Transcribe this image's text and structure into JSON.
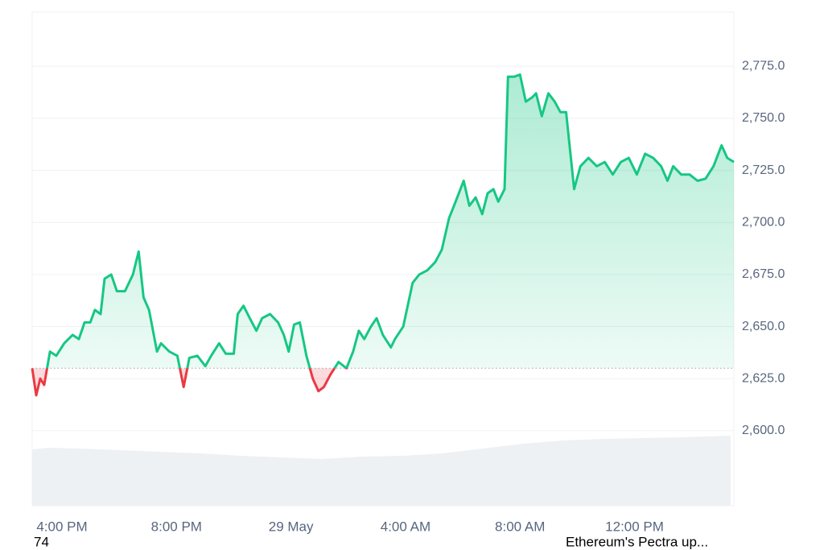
{
  "chart_data": {
    "type": "line",
    "x": [
      14.96,
      15.1,
      15.24,
      15.38,
      15.58,
      15.8,
      16.08,
      16.37,
      16.59,
      16.79,
      16.99,
      17.15,
      17.35,
      17.49,
      17.72,
      17.92,
      18.2,
      18.48,
      18.68,
      18.85,
      19.04,
      19.32,
      19.46,
      19.75,
      20.03,
      20.25,
      20.45,
      20.73,
      21.01,
      21.21,
      21.49,
      21.72,
      22.0,
      22.14,
      22.34,
      22.56,
      22.79,
      22.99,
      23.27,
      23.55,
      23.75,
      23.92,
      24.11,
      24.31,
      24.54,
      24.76,
      24.96,
      25.15,
      25.38,
      25.66,
      25.94,
      26.17,
      26.37,
      26.56,
      26.79,
      26.99,
      27.21,
      27.49,
      27.63,
      27.92,
      28.25,
      28.48,
      28.76,
      29.04,
      29.27,
      29.52,
      29.75,
      30.03,
      30.23,
      30.45,
      30.68,
      30.87,
      31.07,
      31.24,
      31.46,
      31.58,
      31.8,
      32.0,
      32.2,
      32.42,
      32.56,
      32.76,
      32.99,
      33.21,
      33.41,
      33.61,
      33.89,
      34.11,
      34.39,
      34.68,
      34.96,
      35.24,
      35.52,
      35.8,
      36.08,
      36.37,
      36.65,
      36.93,
      37.15,
      37.35,
      37.63,
      37.92,
      38.2,
      38.48,
      38.76,
      39.04,
      39.24,
      39.47
    ],
    "series": [
      {
        "color": "#16c784",
        "below_color": "#ea3943",
        "values": [
          2630,
          2617,
          2625,
          2622,
          2638,
          2636,
          2642,
          2646,
          2644,
          2652,
          2652,
          2658,
          2656,
          2673,
          2675,
          2667,
          2667,
          2675,
          2686,
          2664,
          2658,
          2638,
          2642,
          2638,
          2636,
          2621,
          2635,
          2636,
          2631,
          2636,
          2642,
          2637,
          2637,
          2656,
          2660,
          2654,
          2648,
          2654,
          2656,
          2652,
          2646,
          2638,
          2651,
          2652,
          2636,
          2625,
          2619,
          2621,
          2627,
          2633,
          2630,
          2638,
          2648,
          2644,
          2650,
          2654,
          2646,
          2640,
          2644,
          2650,
          2671,
          2675,
          2677,
          2681,
          2687,
          2702,
          2710,
          2720,
          2708,
          2712,
          2704,
          2714,
          2716,
          2710,
          2716,
          2770,
          2770,
          2771,
          2758,
          2760,
          2762,
          2751,
          2762,
          2758,
          2753,
          2753,
          2716,
          2727,
          2731,
          2727,
          2729,
          2723,
          2729,
          2731,
          2723,
          2733,
          2731,
          2727,
          2720,
          2727,
          2723,
          2723,
          2720,
          2721,
          2727,
          2737,
          2731,
          2729
        ]
      }
    ],
    "baseline": 2630,
    "xlim": [
      14.96,
      39.47
    ],
    "xticks": [
      {
        "value": 16,
        "label": "4:00 PM"
      },
      {
        "value": 20,
        "label": "8:00 PM"
      },
      {
        "value": 24,
        "label": "29 May"
      },
      {
        "value": 28,
        "label": "4:00 AM"
      },
      {
        "value": 32,
        "label": "8:00 AM"
      },
      {
        "value": 36,
        "label": "12:00 PM"
      }
    ],
    "ylim": [
      2564,
      2801
    ],
    "yticks": [
      {
        "value": 2600,
        "label": "2,600.0"
      },
      {
        "value": 2625,
        "label": "2,625.0"
      },
      {
        "value": 2650,
        "label": "2,650.0"
      },
      {
        "value": 2675,
        "label": "2,675.0"
      },
      {
        "value": 2700,
        "label": "2,700.0"
      },
      {
        "value": 2725,
        "label": "2,725.0"
      },
      {
        "value": 2750,
        "label": "2,750.0"
      },
      {
        "value": 2775,
        "label": "2,775.0"
      }
    ],
    "grid": true,
    "footer_left": "74",
    "footer_right": "Ethereum's Pectra up..."
  }
}
